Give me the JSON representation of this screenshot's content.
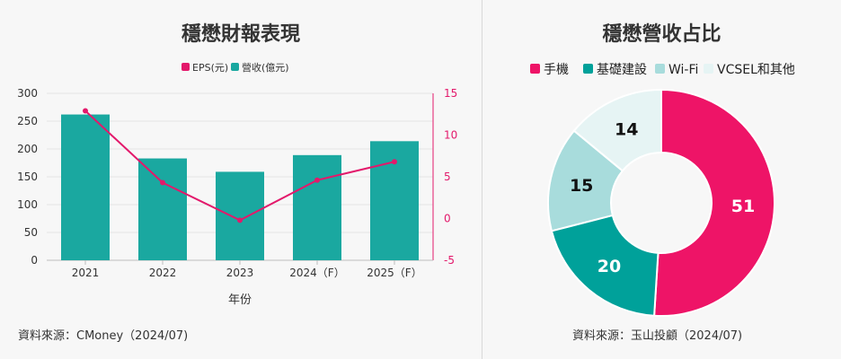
{
  "left": {
    "title": "穩懋財報表現",
    "source": "資料來源：CMoney（2024/07)"
  },
  "right": {
    "title": "穩懋營收占比",
    "source": "資料來源：玉山投顧（2024/07)"
  },
  "colors": {
    "revenue": "#1aa8a0",
    "eps": "#e3196b",
    "pie": [
      "#ee1467",
      "#00a19a",
      "#a8dcdc",
      "#e6f4f4"
    ]
  },
  "chart_data": [
    {
      "type": "bar",
      "title": "穩懋財報表現",
      "categories": [
        "2021",
        "2022",
        "2023",
        "2024（F）",
        "2025（F）"
      ],
      "xlabel": "年份",
      "ylabel": "",
      "legend": [
        "EPS(元)",
        "營收(億元)"
      ],
      "legend_position": "top-center",
      "grid": true,
      "ylim": [
        0,
        300
      ],
      "y2lim": [
        -5,
        15
      ],
      "yticks": [
        0,
        50,
        100,
        150,
        200,
        250,
        300
      ],
      "y2ticks": [
        -5,
        0,
        5,
        10,
        15
      ],
      "series": [
        {
          "name": "營收(億元)",
          "type": "bar",
          "axis": "left",
          "values": [
            262,
            183,
            159,
            189,
            214
          ]
        },
        {
          "name": "EPS(元)",
          "type": "line",
          "axis": "right",
          "values": [
            12.9,
            4.3,
            -0.2,
            4.6,
            6.8
          ]
        }
      ]
    },
    {
      "type": "pie",
      "title": "穩懋營收占比",
      "donut": true,
      "legend_position": "top-center",
      "labels": [
        "手機",
        "基礎建設",
        "Wi-Fi",
        "VCSEL和其他"
      ],
      "values": [
        51,
        20,
        15,
        14
      ]
    }
  ]
}
